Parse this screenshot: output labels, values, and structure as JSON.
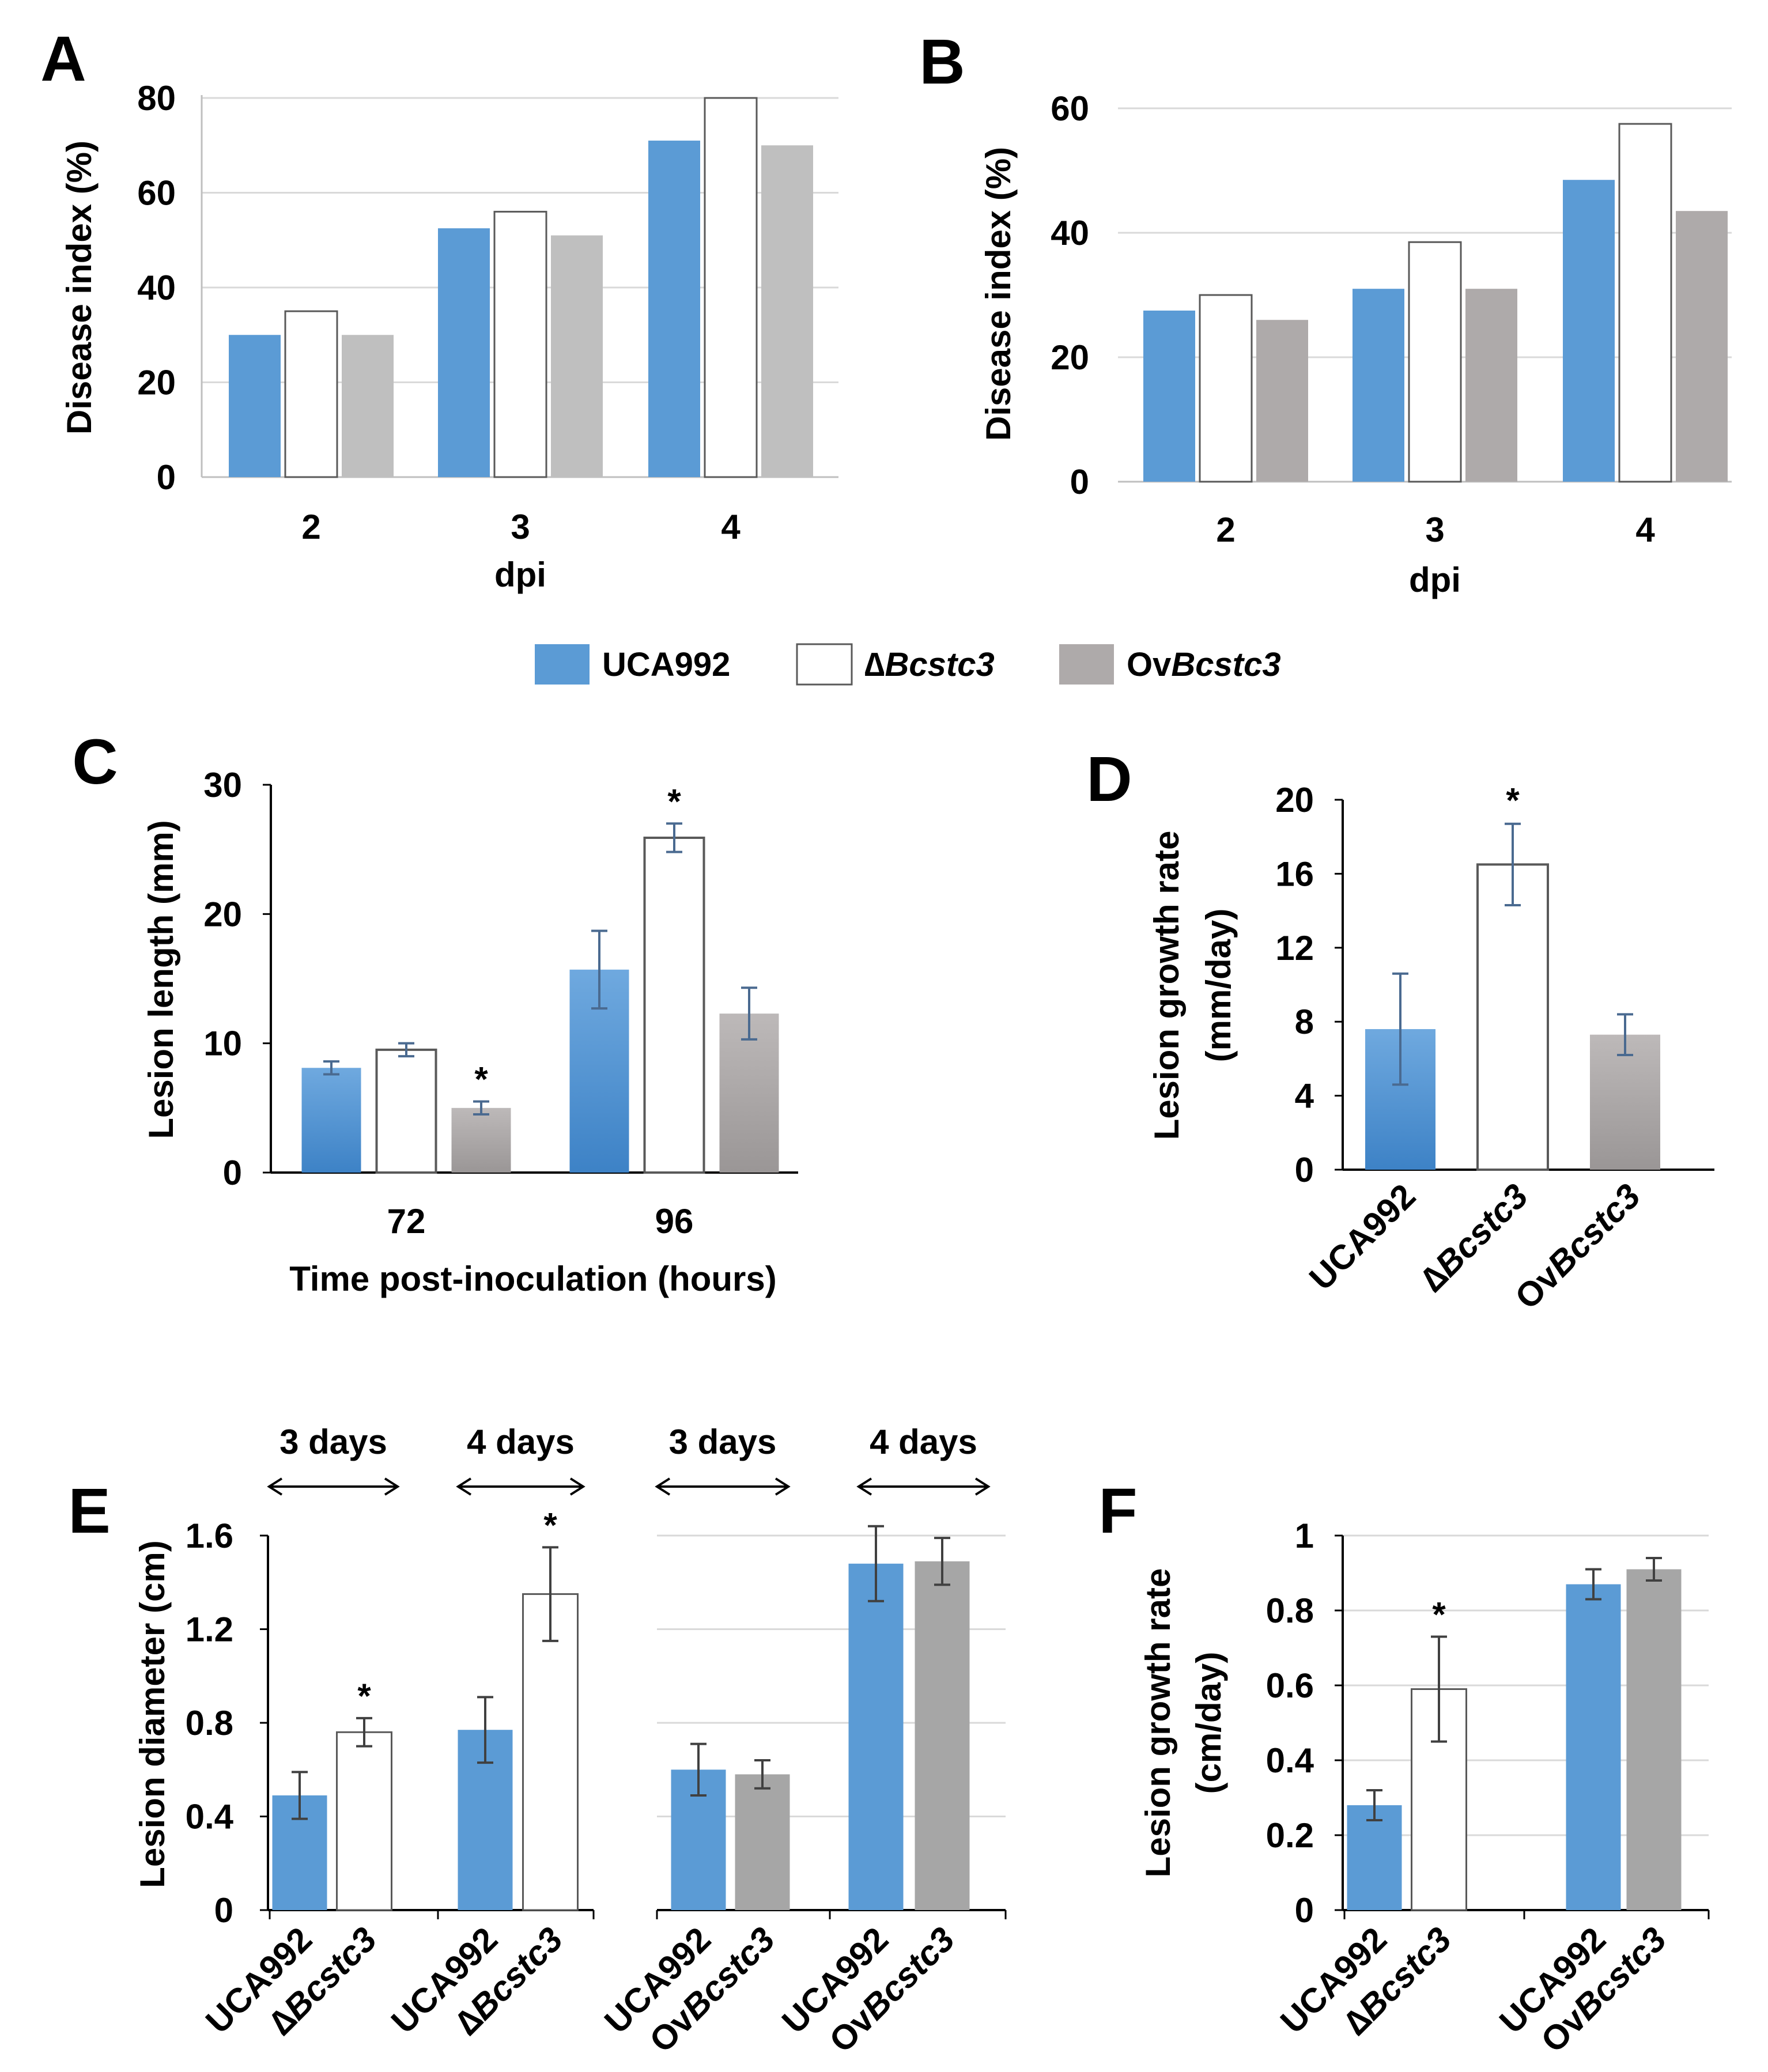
{
  "figure": {
    "legend": [
      {
        "label_plain": "UCA992",
        "color": "#5b9bd5"
      },
      {
        "prefix": "∆",
        "label_italic": "Bcstc3",
        "color": "#ffffff"
      },
      {
        "prefix": "Ov",
        "label_italic": "Bcstc3",
        "color": "#aeaaaa"
      }
    ],
    "significance_mark": "*"
  },
  "chart_data": [
    {
      "panel": "A",
      "type": "bar",
      "xlabel": "dpi",
      "ylabel": "Disease index (%)",
      "ylim": [
        0,
        80
      ],
      "yticks": [
        "0",
        "20",
        "40",
        "60",
        "80"
      ],
      "categories": [
        "2",
        "3",
        "4"
      ],
      "series": [
        {
          "name": "UCA992",
          "color": "#5b9bd5",
          "values": [
            30,
            52.5,
            71
          ]
        },
        {
          "name": "∆Bcstc3",
          "color": "#ffffff",
          "values": [
            35,
            56,
            80
          ]
        },
        {
          "name": "OvBcstc3",
          "color": "#bfbfbf",
          "values": [
            30,
            51,
            70
          ]
        }
      ]
    },
    {
      "panel": "B",
      "type": "bar",
      "xlabel": "dpi",
      "ylabel": "Disease index (%)",
      "ylim": [
        0,
        60
      ],
      "yticks": [
        "0",
        "20",
        "40",
        "60"
      ],
      "categories": [
        "2",
        "3",
        "4"
      ],
      "series": [
        {
          "name": "UCA992",
          "color": "#5b9bd5",
          "values": [
            27.5,
            31,
            48.5
          ]
        },
        {
          "name": "∆Bcstc3",
          "color": "#ffffff",
          "values": [
            30,
            38.5,
            57.5
          ]
        },
        {
          "name": "OvBcstc3",
          "color": "#aeaaaa",
          "values": [
            26,
            31,
            43.5
          ]
        }
      ]
    },
    {
      "panel": "C",
      "type": "bar",
      "xlabel": "Time post-inoculation (hours)",
      "ylabel": "Lesion length (mm)",
      "ylim": [
        0,
        30
      ],
      "yticks": [
        "0",
        "10",
        "20",
        "30"
      ],
      "categories": [
        "72",
        "96"
      ],
      "series": [
        {
          "name": "UCA992",
          "color": "#5b9bd5",
          "values": [
            8.1,
            15.7
          ],
          "errors": [
            0.5,
            3.0
          ],
          "significant": [
            false,
            false
          ]
        },
        {
          "name": "∆Bcstc3",
          "color": "#ffffff",
          "values": [
            9.5,
            25.9
          ],
          "errors": [
            0.5,
            1.1
          ],
          "significant": [
            false,
            true
          ]
        },
        {
          "name": "OvBcstc3",
          "color": "#aeaaaa",
          "values": [
            5.0,
            12.3
          ],
          "errors": [
            0.5,
            2.0
          ],
          "significant": [
            true,
            false
          ]
        }
      ]
    },
    {
      "panel": "D",
      "type": "bar",
      "ylabel_line1": "Lesion growth rate",
      "ylabel_line2": "(mm/day)",
      "ylim": [
        0,
        20
      ],
      "yticks": [
        "0",
        "4",
        "8",
        "12",
        "16",
        "20"
      ],
      "categories": [
        {
          "prefix": "",
          "italic": "",
          "plain": "UCA992"
        },
        {
          "prefix": "∆",
          "italic": "Bcstc3",
          "plain": ""
        },
        {
          "prefix": "Ov",
          "italic": "Bcstc3",
          "plain": ""
        }
      ],
      "values": [
        7.6,
        16.5,
        7.3
      ],
      "errors": [
        3.0,
        2.2,
        1.1
      ],
      "colors": [
        "#5b9bd5",
        "#ffffff",
        "#aeaaaa"
      ],
      "significant": [
        false,
        true,
        false
      ]
    },
    {
      "panel": "E",
      "type": "bar",
      "ylabel": "Lesion diameter (cm)",
      "ylim": [
        0,
        1.6
      ],
      "yticks": [
        "0",
        "0.4",
        "0.8",
        "1.2",
        "1.6"
      ],
      "groups": [
        {
          "label": "3 days",
          "bars": [
            {
              "category": {
                "prefix": "",
                "italic": "",
                "plain": "UCA992"
              },
              "value": 0.49,
              "error": 0.1,
              "color": "#5b9bd5",
              "significant": false
            },
            {
              "category": {
                "prefix": "∆",
                "italic": "Bcstc3",
                "plain": ""
              },
              "value": 0.76,
              "error": 0.06,
              "color": "#ffffff",
              "significant": true
            }
          ]
        },
        {
          "label": "4 days",
          "bars": [
            {
              "category": {
                "prefix": "",
                "italic": "",
                "plain": "UCA992"
              },
              "value": 0.77,
              "error": 0.14,
              "color": "#5b9bd5",
              "significant": false
            },
            {
              "category": {
                "prefix": "∆",
                "italic": "Bcstc3",
                "plain": ""
              },
              "value": 1.35,
              "error": 0.2,
              "color": "#ffffff",
              "significant": true
            }
          ]
        },
        {
          "label": "3 days",
          "bars": [
            {
              "category": {
                "prefix": "",
                "italic": "",
                "plain": "UCA992"
              },
              "value": 0.6,
              "error": 0.11,
              "color": "#5b9bd5",
              "significant": false
            },
            {
              "category": {
                "prefix": "Ov",
                "italic": "Bcstc3",
                "plain": ""
              },
              "value": 0.58,
              "error": 0.06,
              "color": "#a6a6a6",
              "significant": false
            }
          ]
        },
        {
          "label": "4 days",
          "bars": [
            {
              "category": {
                "prefix": "",
                "italic": "",
                "plain": "UCA992"
              },
              "value": 1.48,
              "error": 0.16,
              "color": "#5b9bd5",
              "significant": false
            },
            {
              "category": {
                "prefix": "Ov",
                "italic": "Bcstc3",
                "plain": ""
              },
              "value": 1.49,
              "error": 0.1,
              "color": "#a6a6a6",
              "significant": false
            }
          ]
        }
      ]
    },
    {
      "panel": "F",
      "type": "bar",
      "ylabel_line1": "Lesion  growth rate",
      "ylabel_line2": "(cm/day)",
      "ylim": [
        0,
        1
      ],
      "yticks": [
        "0",
        "0.2",
        "0.4",
        "0.6",
        "0.8",
        "1"
      ],
      "groups": [
        {
          "bars": [
            {
              "category": {
                "prefix": "",
                "italic": "",
                "plain": "UCA992"
              },
              "value": 0.28,
              "error": 0.04,
              "color": "#5b9bd5",
              "significant": false
            },
            {
              "category": {
                "prefix": "∆",
                "italic": "Bcstc3",
                "plain": ""
              },
              "value": 0.59,
              "error": 0.14,
              "color": "#ffffff",
              "significant": true
            }
          ]
        },
        {
          "bars": [
            {
              "category": {
                "prefix": "",
                "italic": "",
                "plain": "UCA992"
              },
              "value": 0.87,
              "error": 0.04,
              "color": "#5b9bd5",
              "significant": false
            },
            {
              "category": {
                "prefix": "Ov",
                "italic": "Bcstc3",
                "plain": ""
              },
              "value": 0.91,
              "error": 0.03,
              "color": "#a6a6a6",
              "significant": false
            }
          ]
        }
      ]
    }
  ]
}
